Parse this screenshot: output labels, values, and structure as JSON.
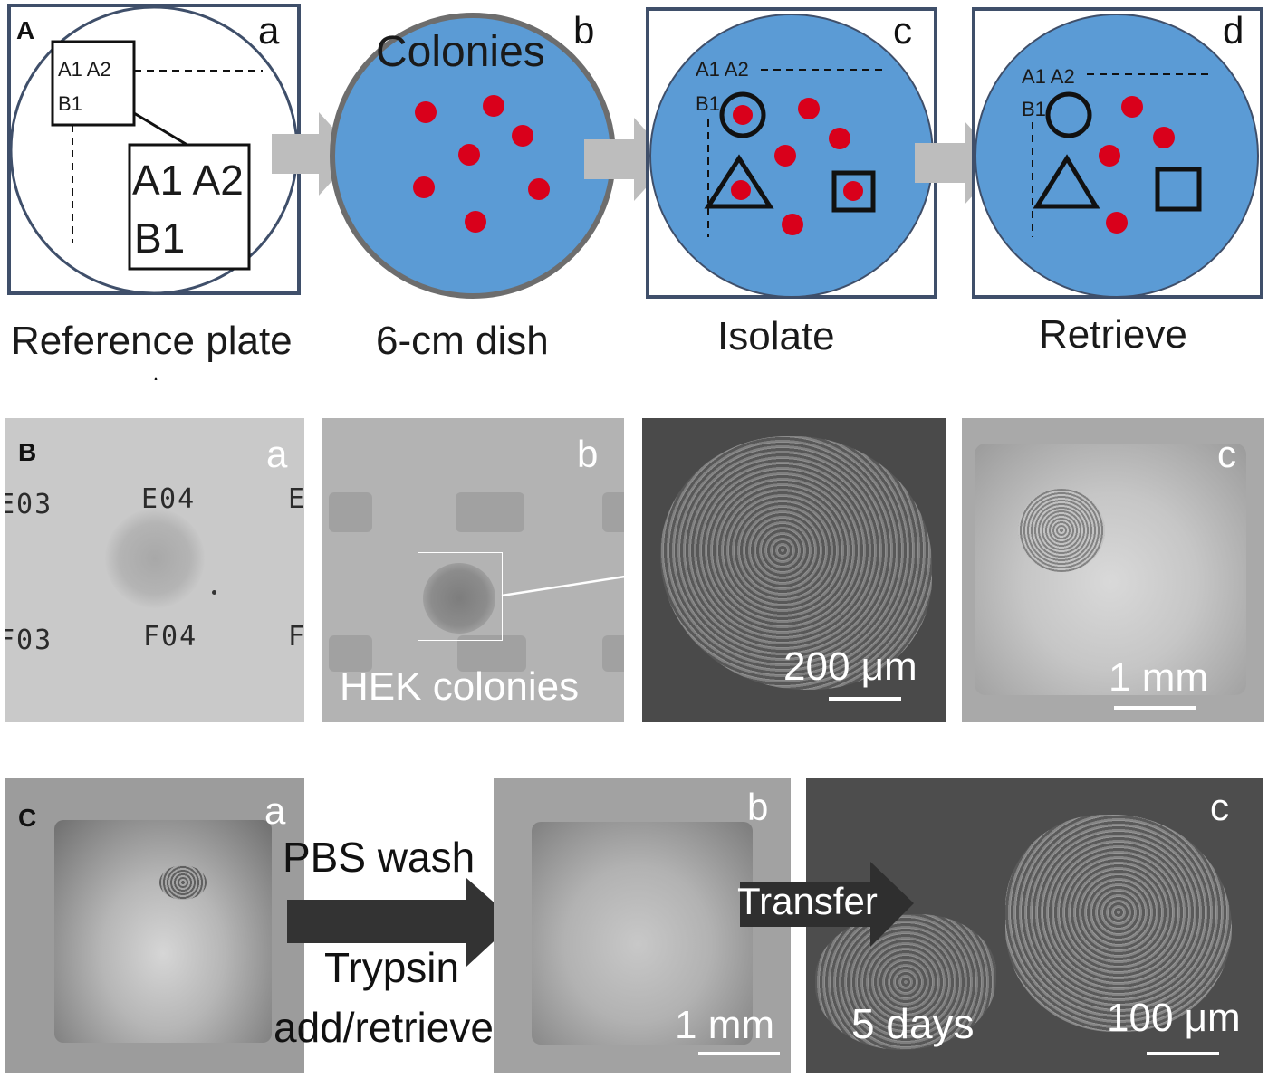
{
  "panel_A": {
    "tag": "A",
    "sub": {
      "a": "a",
      "b": "b",
      "c": "c",
      "d": "d"
    },
    "plate_a": {
      "small_box_line1": "A1 A2",
      "small_box_line2": "B1",
      "big_box_line1": "A1 A2",
      "big_box_line2": "B1"
    },
    "plate_b": {
      "title": "Colonies"
    },
    "plate_c": {
      "line1": "A1 A2",
      "line2": "B1"
    },
    "plate_d": {
      "line1": "A1 A2",
      "line2": "B1"
    },
    "captions": {
      "a": "Reference plate",
      "b": "6-cm dish",
      "c": "Isolate",
      "d": "Retrieve"
    },
    "colors": {
      "dish_fill": "#5b9bd5",
      "colony": "#d9001b",
      "arrow": "#bdbdbd",
      "frame": "#3f4f6a"
    }
  },
  "panel_B": {
    "tag": "B",
    "sub": {
      "a": "a",
      "b": "b",
      "c": "c"
    },
    "wells": [
      "E03",
      "E04",
      "E",
      "F03",
      "F04",
      "F"
    ],
    "b_label": "HEK colonies",
    "scale_c1": "200 μm",
    "scale_c2": "1 mm"
  },
  "panel_C": {
    "tag": "C",
    "sub": {
      "a": "a",
      "b": "b",
      "c": "c"
    },
    "step1_top": "PBS wash",
    "step1_bottom_line1": "Trypsin",
    "step1_bottom_line2": "add/retrieve",
    "step2": "Transfer",
    "scale_b": "1 mm",
    "days": "5 days",
    "scale_c": "100 μm"
  }
}
